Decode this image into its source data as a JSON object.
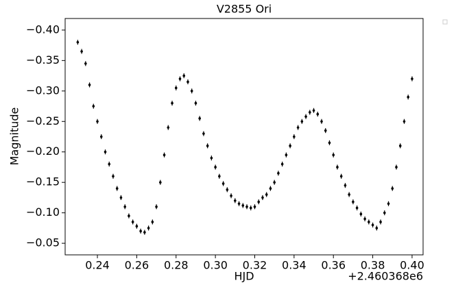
{
  "chart_data": {
    "type": "errorbar_scatter",
    "title": "V2855 Ori",
    "x_label": "HJD",
    "y_label": "Magnitude",
    "x_offset_label": "+2.460368e6",
    "color": "#000000",
    "yerr": 0.004,
    "x": [
      0.23,
      0.232,
      0.234,
      0.236,
      0.238,
      0.24,
      0.242,
      0.244,
      0.246,
      0.248,
      0.25,
      0.252,
      0.254,
      0.256,
      0.258,
      0.26,
      0.262,
      0.264,
      0.266,
      0.268,
      0.27,
      0.272,
      0.274,
      0.276,
      0.278,
      0.28,
      0.282,
      0.284,
      0.286,
      0.288,
      0.29,
      0.292,
      0.294,
      0.296,
      0.298,
      0.3,
      0.302,
      0.304,
      0.306,
      0.308,
      0.31,
      0.312,
      0.314,
      0.316,
      0.318,
      0.32,
      0.322,
      0.324,
      0.326,
      0.328,
      0.33,
      0.332,
      0.334,
      0.336,
      0.338,
      0.34,
      0.342,
      0.344,
      0.346,
      0.348,
      0.35,
      0.352,
      0.354,
      0.356,
      0.358,
      0.36,
      0.362,
      0.364,
      0.366,
      0.368,
      0.37,
      0.372,
      0.374,
      0.376,
      0.378,
      0.38,
      0.382,
      0.384,
      0.386,
      0.388,
      0.39,
      0.392,
      0.394,
      0.396,
      0.398,
      0.4
    ],
    "values": [
      -0.38,
      -0.365,
      -0.345,
      -0.31,
      -0.275,
      -0.25,
      -0.225,
      -0.2,
      -0.18,
      -0.16,
      -0.14,
      -0.125,
      -0.11,
      -0.095,
      -0.085,
      -0.078,
      -0.07,
      -0.068,
      -0.075,
      -0.085,
      -0.11,
      -0.15,
      -0.195,
      -0.24,
      -0.28,
      -0.305,
      -0.32,
      -0.325,
      -0.315,
      -0.3,
      -0.28,
      -0.255,
      -0.23,
      -0.21,
      -0.19,
      -0.175,
      -0.16,
      -0.148,
      -0.138,
      -0.128,
      -0.12,
      -0.115,
      -0.112,
      -0.11,
      -0.108,
      -0.11,
      -0.118,
      -0.125,
      -0.13,
      -0.14,
      -0.15,
      -0.165,
      -0.18,
      -0.195,
      -0.21,
      -0.225,
      -0.24,
      -0.25,
      -0.258,
      -0.265,
      -0.268,
      -0.262,
      -0.25,
      -0.235,
      -0.215,
      -0.195,
      -0.175,
      -0.16,
      -0.145,
      -0.13,
      -0.118,
      -0.108,
      -0.098,
      -0.09,
      -0.085,
      -0.08,
      -0.075,
      -0.085,
      -0.1,
      -0.115,
      -0.14,
      -0.175,
      -0.21,
      -0.25,
      -0.29,
      -0.32
    ],
    "xlim": [
      0.2236,
      0.4056
    ],
    "ylim": [
      -0.031,
      -0.419
    ],
    "xticks": [
      0.24,
      0.26,
      0.28,
      {
        "value": 0.3,
        "label": "0.30"
      },
      0.32,
      0.34,
      0.36,
      0.38,
      {
        "value": 0.4,
        "label": "0.40"
      }
    ],
    "yticks": [
      {
        "value": -0.05,
        "label": "−0.05"
      },
      {
        "value": -0.1,
        "label": "−0.10"
      },
      {
        "value": -0.15,
        "label": "−0.15"
      },
      {
        "value": -0.2,
        "label": "−0.20"
      },
      {
        "value": -0.25,
        "label": "−0.25"
      },
      {
        "value": -0.3,
        "label": "−0.30"
      },
      {
        "value": -0.35,
        "label": "−0.35"
      },
      {
        "value": -0.4,
        "label": "−0.40"
      }
    ]
  }
}
